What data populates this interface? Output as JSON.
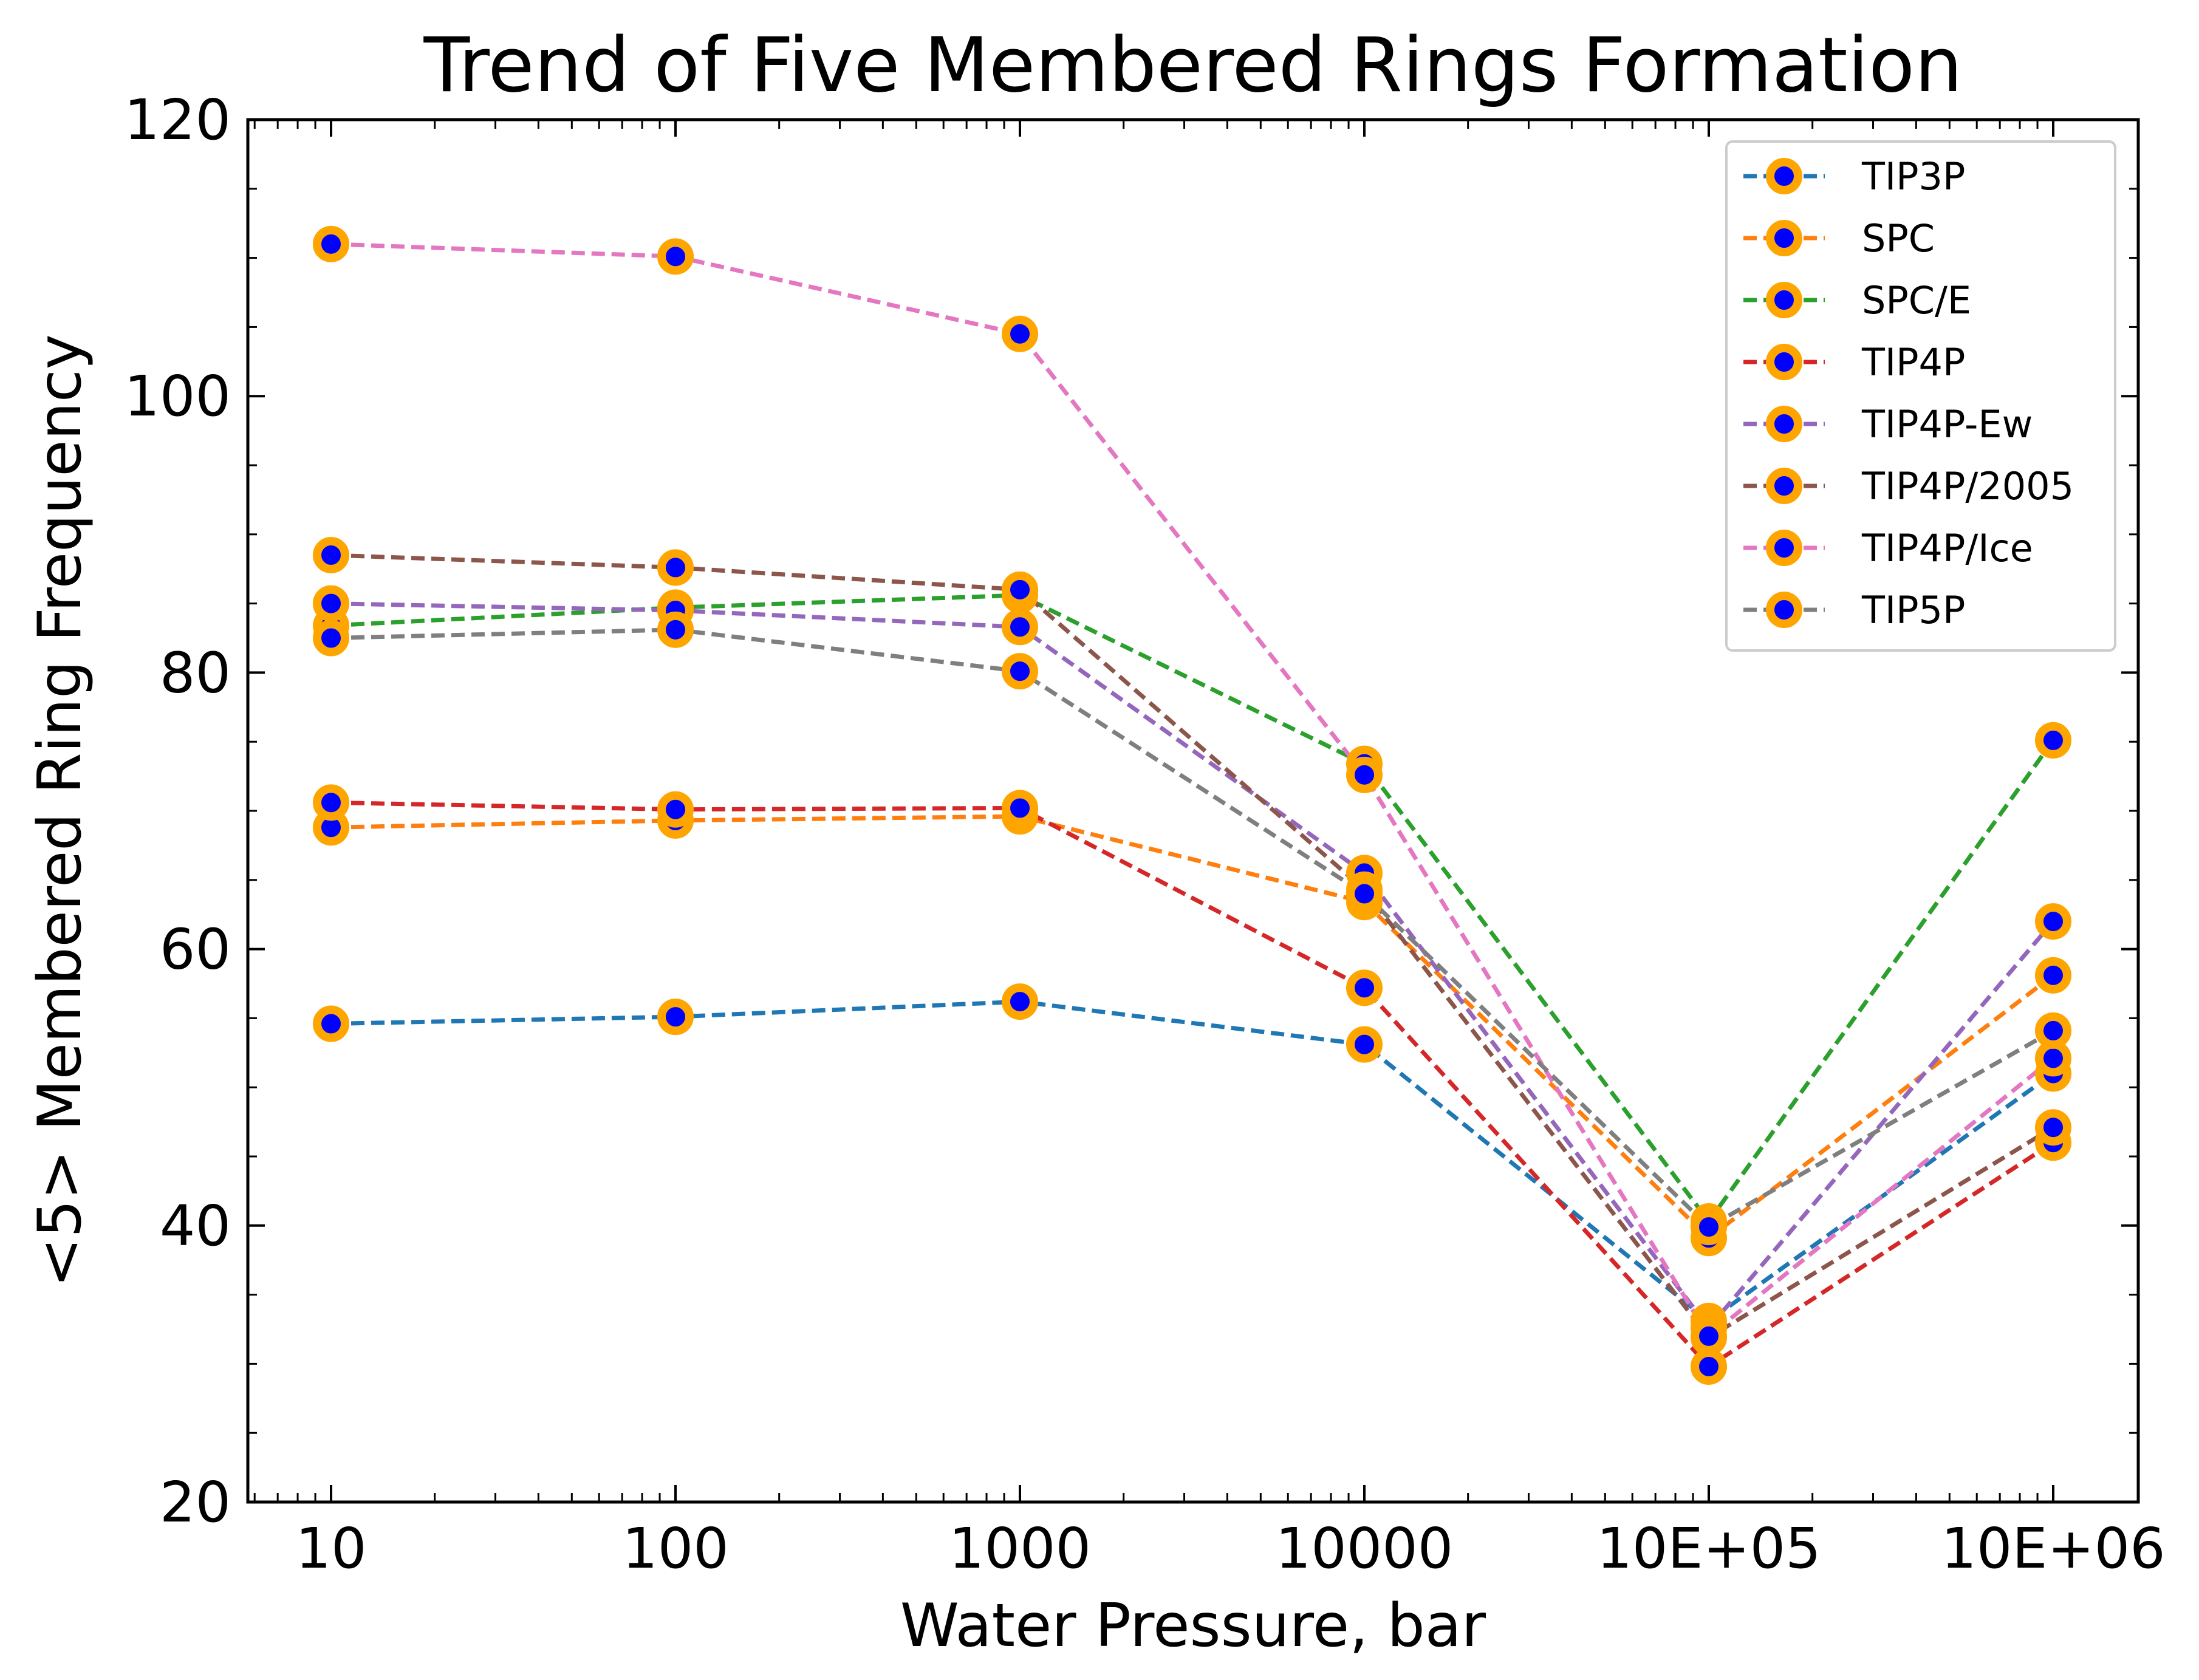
{
  "chart_data": {
    "type": "line",
    "title": "Trend of Five Membered Rings Formation",
    "xlabel": "Water Pressure, bar",
    "ylabel": "<5> Membered Ring Frequency",
    "x_scale": "log",
    "x": [
      10,
      100,
      1000,
      10000,
      100000,
      1000000
    ],
    "x_tick_labels": [
      "10",
      "100",
      "1000",
      "10000",
      "10E+05",
      "10E+06"
    ],
    "ylim": [
      20,
      120
    ],
    "y_ticks": [
      20,
      40,
      60,
      80,
      100,
      120
    ],
    "y_tick_labels": [
      "20",
      "40",
      "60",
      "80",
      "100",
      "120"
    ],
    "grid": false,
    "legend_position": "top-right",
    "marker": {
      "fill": "#0000ff",
      "edge": "#ffa500"
    },
    "series": [
      {
        "name": "TIP3P",
        "color": "#1f77b4",
        "values": [
          54.6,
          55.1,
          56.2,
          53.1,
          33.1,
          51.0
        ]
      },
      {
        "name": "SPC",
        "color": "#ff7f0e",
        "values": [
          68.8,
          69.3,
          69.6,
          63.4,
          39.1,
          58.1
        ]
      },
      {
        "name": "SPC/E",
        "color": "#2ca02c",
        "values": [
          83.4,
          84.7,
          85.6,
          73.4,
          40.3,
          75.1
        ]
      },
      {
        "name": "TIP4P",
        "color": "#d62728",
        "values": [
          70.6,
          70.1,
          70.2,
          57.2,
          29.8,
          46.0
        ]
      },
      {
        "name": "TIP4P-Ew",
        "color": "#9467bd",
        "values": [
          85.0,
          84.5,
          83.3,
          65.5,
          32.6,
          62.0
        ]
      },
      {
        "name": "TIP4P/2005",
        "color": "#8c564b",
        "values": [
          88.5,
          87.6,
          86.0,
          64.3,
          31.9,
          47.1
        ]
      },
      {
        "name": "TIP4P/Ice",
        "color": "#e377c2",
        "values": [
          111.0,
          110.1,
          104.5,
          72.6,
          32.0,
          52.1
        ]
      },
      {
        "name": "TIP5P",
        "color": "#7f7f7f",
        "values": [
          82.5,
          83.1,
          80.1,
          64.0,
          39.9,
          54.1
        ]
      }
    ]
  }
}
